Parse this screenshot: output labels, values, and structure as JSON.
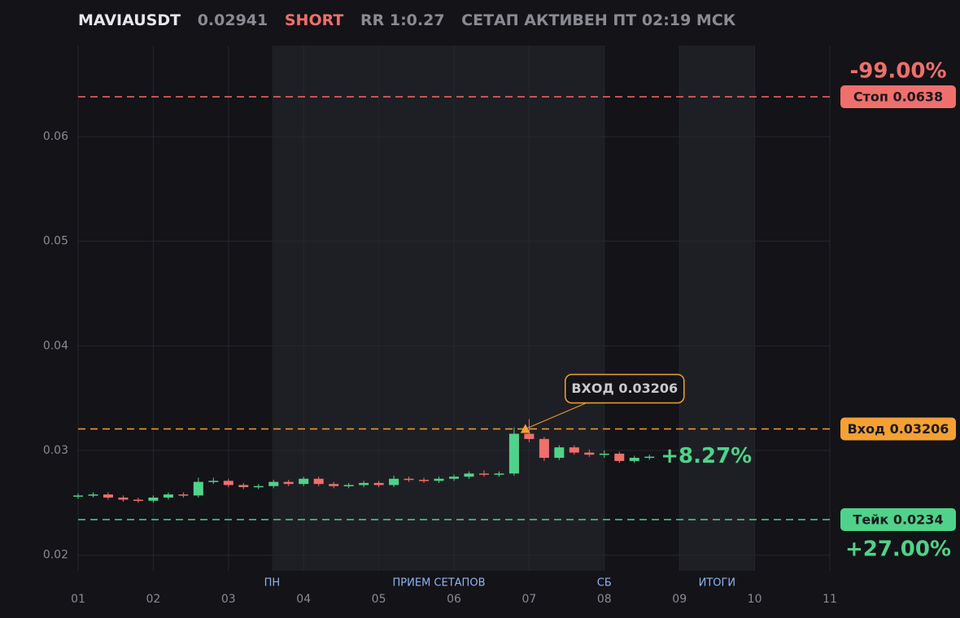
{
  "header": {
    "symbol": "MAVIAUSDT",
    "price": "0.02941",
    "side": "SHORT",
    "rr": "RR 1:0.27",
    "status": "СЕТАП АКТИВЕН ПТ 02:19 МСК"
  },
  "chart_data": {
    "type": "candlestick",
    "xlim": [
      1,
      11
    ],
    "ylim": [
      0.0185,
      0.0687
    ],
    "xticks": [
      {
        "value": 1,
        "label": "01"
      },
      {
        "value": 2,
        "label": "02"
      },
      {
        "value": 3,
        "label": "03"
      },
      {
        "value": 4,
        "label": "04"
      },
      {
        "value": 5,
        "label": "05"
      },
      {
        "value": 6,
        "label": "06"
      },
      {
        "value": 7,
        "label": "07"
      },
      {
        "value": 8,
        "label": "08"
      },
      {
        "value": 9,
        "label": "09"
      },
      {
        "value": 10,
        "label": "10"
      },
      {
        "value": 11,
        "label": "11"
      }
    ],
    "yticks": [
      0.02,
      0.03,
      0.04,
      0.05,
      0.06
    ],
    "grid": true,
    "up_color": "#4fd38a",
    "down_color": "#ef6f6c",
    "zones": [
      {
        "start": 3.58,
        "end": 8.0
      },
      {
        "start": 9.0,
        "end": 10.0
      }
    ],
    "session_labels": [
      {
        "label": "ПН",
        "x": 3.58
      },
      {
        "label": "ПРИЕМ СЕТАПОВ",
        "x": 5.8
      },
      {
        "label": "СБ",
        "x": 8.0
      },
      {
        "label": "ИТОГИ",
        "x": 9.5
      }
    ],
    "x": [
      1.0,
      1.2,
      1.4,
      1.6,
      1.8,
      2.0,
      2.2,
      2.4,
      2.6,
      2.8,
      3.0,
      3.2,
      3.4,
      3.6,
      3.8,
      4.0,
      4.2,
      4.4,
      4.6,
      4.8,
      5.0,
      5.2,
      5.4,
      5.6,
      5.8,
      6.0,
      6.2,
      6.4,
      6.6,
      6.8,
      7.0,
      7.2,
      7.4,
      7.6,
      7.8,
      8.0,
      8.2,
      8.4,
      8.6
    ],
    "open": [
      0.0256,
      0.0257,
      0.0258,
      0.0255,
      0.0253,
      0.0252,
      0.0255,
      0.0258,
      0.0257,
      0.027,
      0.0271,
      0.0267,
      0.0265,
      0.0266,
      0.027,
      0.0268,
      0.0273,
      0.0268,
      0.0266,
      0.0267,
      0.0269,
      0.0267,
      0.0273,
      0.0272,
      0.0271,
      0.0273,
      0.0275,
      0.0278,
      0.0277,
      0.0278,
      0.0316,
      0.0311,
      0.0293,
      0.0303,
      0.0298,
      0.0296,
      0.0297,
      0.029,
      0.0293
    ],
    "high": [
      0.0259,
      0.026,
      0.026,
      0.0257,
      0.0255,
      0.0257,
      0.026,
      0.026,
      0.0274,
      0.0274,
      0.0273,
      0.0269,
      0.0268,
      0.0272,
      0.0272,
      0.0275,
      0.0275,
      0.027,
      0.0269,
      0.0271,
      0.0271,
      0.0276,
      0.0275,
      0.0274,
      0.0275,
      0.0277,
      0.028,
      0.0281,
      0.028,
      0.0322,
      0.033,
      0.0313,
      0.0305,
      0.0305,
      0.0301,
      0.03,
      0.0299,
      0.0295,
      0.0296
    ],
    "low": [
      0.0254,
      0.0255,
      0.0253,
      0.0251,
      0.025,
      0.025,
      0.0253,
      0.0255,
      0.0255,
      0.0268,
      0.0265,
      0.0263,
      0.0263,
      0.0264,
      0.0266,
      0.0266,
      0.0266,
      0.0264,
      0.0264,
      0.0265,
      0.0265,
      0.0265,
      0.027,
      0.0269,
      0.0269,
      0.0271,
      0.0273,
      0.0275,
      0.0275,
      0.0276,
      0.0308,
      0.029,
      0.0291,
      0.0296,
      0.0294,
      0.0293,
      0.0288,
      0.0288,
      0.0291
    ],
    "close": [
      0.0257,
      0.0258,
      0.0255,
      0.0253,
      0.0252,
      0.0255,
      0.0258,
      0.0257,
      0.027,
      0.0271,
      0.0267,
      0.0265,
      0.0266,
      0.027,
      0.0268,
      0.0273,
      0.0268,
      0.0266,
      0.0267,
      0.0269,
      0.0267,
      0.0273,
      0.0272,
      0.0271,
      0.0273,
      0.0275,
      0.0278,
      0.0277,
      0.0278,
      0.0316,
      0.0311,
      0.0293,
      0.0303,
      0.0298,
      0.0296,
      0.0297,
      0.029,
      0.0293,
      0.02941
    ],
    "current_pct_label": "+8.27%",
    "levels": [
      {
        "value": 0.0638,
        "label": "Стоп 0.0638",
        "color": "#ef6f6c",
        "pct_label": "-99.00%"
      },
      {
        "value": 0.03206,
        "label": "Вход 0.03206",
        "color": "#f5a033"
      },
      {
        "value": 0.0234,
        "label": "Тейк 0.0234",
        "color": "#4fd38a",
        "pct_label": "+27.00%"
      }
    ],
    "entry_marker": {
      "x": 6.95,
      "value": 0.03206,
      "label": "ВХОД 0.03206"
    }
  }
}
